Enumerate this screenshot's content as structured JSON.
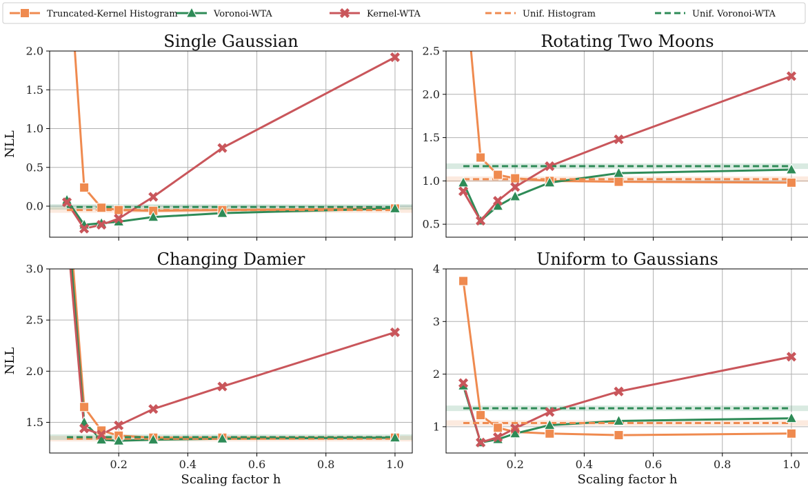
{
  "colors": {
    "truncated_kernel_histogram": "#EF8A4F",
    "voronoi_wta": "#2E8B57",
    "kernel_wta": "#C9565B",
    "unif_histogram": "#EF8A4F",
    "unif_voronoi_wta": "#2E8B57",
    "grid": "#b0b0b0",
    "axes": "#000000"
  },
  "legend": {
    "placement": "top",
    "entries": [
      {
        "key": "truncated_kernel_histogram",
        "label": "Truncated-Kernel Histogram",
        "marker": "square",
        "dashed": false
      },
      {
        "key": "voronoi_wta",
        "label": "Voronoi-WTA",
        "marker": "triangle",
        "dashed": false
      },
      {
        "key": "kernel_wta",
        "label": "Kernel-WTA",
        "marker": "x",
        "dashed": false
      },
      {
        "key": "unif_histogram",
        "label": "Unif. Histogram",
        "marker": "none",
        "dashed": true
      },
      {
        "key": "unif_voronoi_wta",
        "label": "Unif. Voronoi-WTA",
        "marker": "none",
        "dashed": true
      }
    ]
  },
  "chart_data": [
    {
      "type": "line",
      "title": "Single Gaussian",
      "xlabel": "",
      "ylabel": "NLL",
      "xlim": [
        0.0,
        1.05
      ],
      "ylim": [
        -0.4,
        2.0
      ],
      "xticks": [
        0.2,
        0.4,
        0.6,
        0.8,
        1.0
      ],
      "yticks": [
        0.0,
        0.5,
        1.0,
        1.5,
        2.0
      ],
      "ytick_labels": [
        "0.0",
        "0.5",
        "1.0",
        "1.5",
        "2.0"
      ],
      "show_xtick_labels": false,
      "grid": true,
      "x": [
        0.05,
        0.1,
        0.15,
        0.2,
        0.3,
        0.5,
        1.0
      ],
      "series": [
        {
          "key": "truncated_kernel_histogram",
          "name": "Truncated-Kernel Histogram",
          "values": [
            3.5,
            0.24,
            -0.02,
            -0.05,
            -0.06,
            -0.05,
            -0.03
          ]
        },
        {
          "key": "voronoi_wta",
          "name": "Voronoi-WTA",
          "values": [
            0.08,
            -0.24,
            -0.22,
            -0.2,
            -0.14,
            -0.09,
            -0.03
          ]
        },
        {
          "key": "kernel_wta",
          "name": "Kernel-WTA",
          "values": [
            0.05,
            -0.29,
            -0.24,
            -0.16,
            0.12,
            0.75,
            1.92
          ]
        }
      ],
      "baselines": [
        {
          "key": "unif_histogram",
          "name": "Unif. Histogram",
          "value": -0.05
        },
        {
          "key": "unif_voronoi_wta",
          "name": "Unif. Voronoi-WTA",
          "value": -0.01
        }
      ]
    },
    {
      "type": "line",
      "title": "Rotating Two Moons",
      "xlabel": "",
      "ylabel": "",
      "xlim": [
        0.0,
        1.05
      ],
      "ylim": [
        0.35,
        2.5
      ],
      "xticks": [
        0.2,
        0.4,
        0.6,
        0.8,
        1.0
      ],
      "yticks": [
        0.5,
        1.0,
        1.5,
        2.0,
        2.5
      ],
      "ytick_labels": [
        "0.5",
        "1.0",
        "1.5",
        "2.0",
        "2.5"
      ],
      "show_xtick_labels": false,
      "grid": true,
      "x": [
        0.05,
        0.1,
        0.15,
        0.2,
        0.3,
        0.5,
        1.0
      ],
      "series": [
        {
          "key": "truncated_kernel_histogram",
          "name": "Truncated-Kernel Histogram",
          "values": [
            3.5,
            1.27,
            1.07,
            1.03,
            1.0,
            0.99,
            0.98
          ]
        },
        {
          "key": "voronoi_wta",
          "name": "Voronoi-WTA",
          "values": [
            0.98,
            0.54,
            0.71,
            0.82,
            0.98,
            1.09,
            1.13
          ]
        },
        {
          "key": "kernel_wta",
          "name": "Kernel-WTA",
          "values": [
            0.88,
            0.54,
            0.77,
            0.93,
            1.17,
            1.48,
            2.21
          ]
        }
      ],
      "baselines": [
        {
          "key": "unif_histogram",
          "name": "Unif. Histogram",
          "value": 1.02
        },
        {
          "key": "unif_voronoi_wta",
          "name": "Unif. Voronoi-WTA",
          "value": 1.17
        }
      ]
    },
    {
      "type": "line",
      "title": "Changing Damier",
      "xlabel": "Scaling factor h",
      "ylabel": "NLL",
      "xlim": [
        0.0,
        1.05
      ],
      "ylim": [
        1.2,
        3.0
      ],
      "xticks": [
        0.2,
        0.4,
        0.6,
        0.8,
        1.0
      ],
      "xtick_labels": [
        "0.2",
        "0.4",
        "0.6",
        "0.8",
        "1.0"
      ],
      "yticks": [
        1.5,
        2.0,
        2.5,
        3.0
      ],
      "ytick_labels": [
        "1.5",
        "2.0",
        "2.5",
        "3.0"
      ],
      "show_xtick_labels": true,
      "grid": true,
      "x": [
        0.05,
        0.1,
        0.15,
        0.2,
        0.3,
        0.5,
        1.0
      ],
      "series": [
        {
          "key": "truncated_kernel_histogram",
          "name": "Truncated-Kernel Histogram",
          "values": [
            3.8,
            1.65,
            1.42,
            1.37,
            1.35,
            1.35,
            1.35
          ]
        },
        {
          "key": "voronoi_wta",
          "name": "Voronoi-WTA",
          "values": [
            3.6,
            1.5,
            1.33,
            1.32,
            1.33,
            1.34,
            1.35
          ]
        },
        {
          "key": "kernel_wta",
          "name": "Kernel-WTA",
          "values": [
            3.4,
            1.44,
            1.38,
            1.47,
            1.63,
            1.85,
            2.38
          ]
        }
      ],
      "baselines": [
        {
          "key": "unif_histogram",
          "name": "Unif. Histogram",
          "value": 1.34
        },
        {
          "key": "unif_voronoi_wta",
          "name": "Unif. Voronoi-WTA",
          "value": 1.355
        }
      ]
    },
    {
      "type": "line",
      "title": "Uniform to Gaussians",
      "xlabel": "Scaling factor h",
      "ylabel": "",
      "xlim": [
        0.0,
        1.05
      ],
      "ylim": [
        0.5,
        4.0
      ],
      "xticks": [
        0.2,
        0.4,
        0.6,
        0.8,
        1.0
      ],
      "xtick_labels": [
        "0.2",
        "0.4",
        "0.6",
        "0.8",
        "1.0"
      ],
      "yticks": [
        1,
        2,
        3,
        4
      ],
      "ytick_labels": [
        "1",
        "2",
        "3",
        "4"
      ],
      "show_xtick_labels": true,
      "grid": true,
      "x": [
        0.05,
        0.1,
        0.15,
        0.2,
        0.3,
        0.5,
        1.0
      ],
      "series": [
        {
          "key": "truncated_kernel_histogram",
          "name": "Truncated-Kernel Histogram",
          "values": [
            3.77,
            1.22,
            0.98,
            0.9,
            0.87,
            0.84,
            0.87
          ]
        },
        {
          "key": "voronoi_wta",
          "name": "Voronoi-WTA",
          "values": [
            1.78,
            0.7,
            0.76,
            0.87,
            1.03,
            1.11,
            1.16
          ]
        },
        {
          "key": "kernel_wta",
          "name": "Kernel-WTA",
          "values": [
            1.83,
            0.7,
            0.8,
            0.97,
            1.28,
            1.67,
            2.33
          ]
        }
      ],
      "baselines": [
        {
          "key": "unif_histogram",
          "name": "Unif. Histogram",
          "value": 1.07
        },
        {
          "key": "unif_voronoi_wta",
          "name": "Unif. Voronoi-WTA",
          "value": 1.35
        }
      ]
    }
  ]
}
